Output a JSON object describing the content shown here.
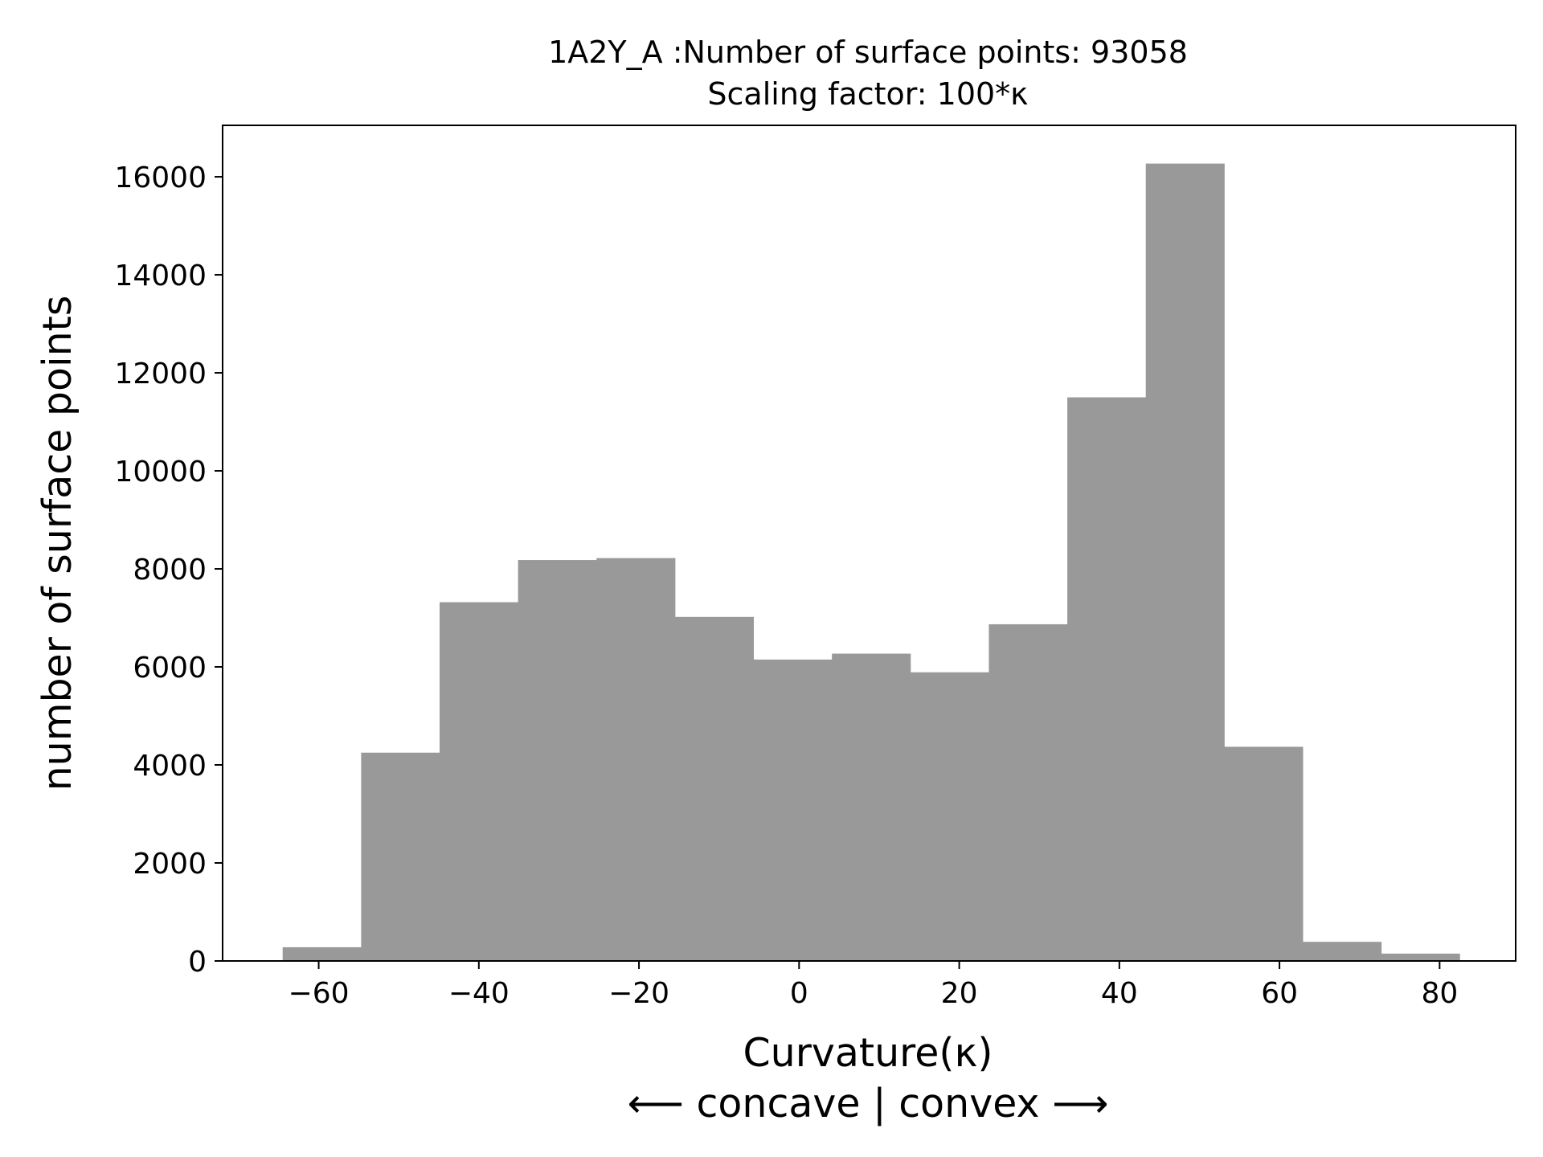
{
  "chart_data": {
    "type": "bar",
    "title": "1A2Y_A :Number of surface points: 93058",
    "subtitle": "Scaling factor: 100*κ",
    "xlabel": "Curvature(κ)",
    "xlabel_sub": "⟵ concave | convex ⟶",
    "ylabel": "number of surface points",
    "xlim": [
      -72,
      89.5
    ],
    "ylim": [
      0,
      17050
    ],
    "xticks": [
      -60,
      -40,
      -20,
      0,
      20,
      40,
      60,
      80
    ],
    "xtick_labels": [
      "−60",
      "−40",
      "−20",
      "0",
      "20",
      "40",
      "60",
      "80"
    ],
    "yticks": [
      0,
      2000,
      4000,
      6000,
      8000,
      10000,
      12000,
      14000,
      16000
    ],
    "ytick_labels": [
      "0",
      "2000",
      "4000",
      "6000",
      "8000",
      "10000",
      "12000",
      "14000",
      "16000"
    ],
    "bin_edges": [
      -64.5,
      -54.7,
      -44.9,
      -35.1,
      -25.3,
      -15.5,
      -5.7,
      4.1,
      13.9,
      23.7,
      33.5,
      43.3,
      53.1,
      62.9,
      72.7,
      82.5
    ],
    "values": [
      280,
      4250,
      7320,
      8180,
      8220,
      7020,
      6150,
      6270,
      5890,
      6870,
      11500,
      16270,
      4370,
      390,
      150
    ],
    "bar_color": "#999999",
    "grid": false
  }
}
